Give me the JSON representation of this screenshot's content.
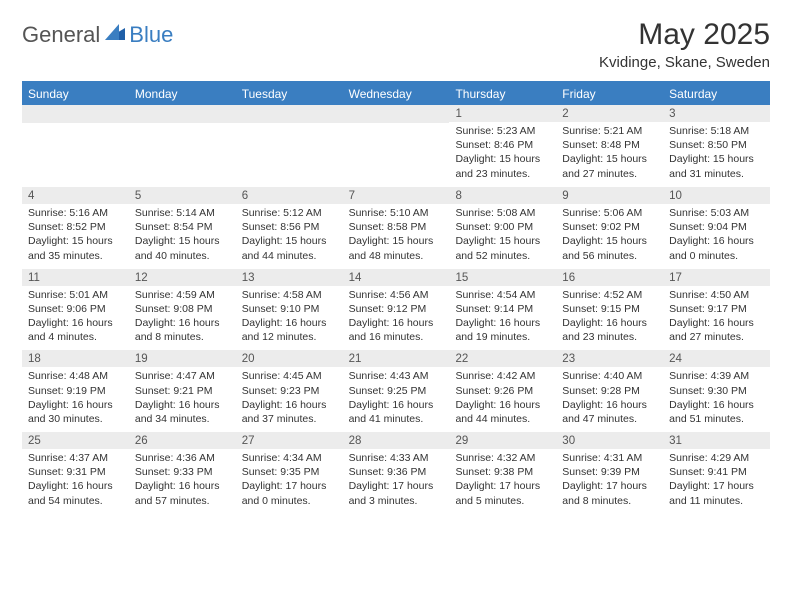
{
  "logo": {
    "general": "General",
    "blue": "Blue"
  },
  "title": "May 2025",
  "location": "Kvidinge, Skane, Sweden",
  "colors": {
    "header_bar": "#3a7ec1",
    "day_bg": "#ececec",
    "page_bg": "#ffffff",
    "text": "#333333",
    "logo_gray": "#555555",
    "logo_blue": "#3a7ec1"
  },
  "day_names": [
    "Sunday",
    "Monday",
    "Tuesday",
    "Wednesday",
    "Thursday",
    "Friday",
    "Saturday"
  ],
  "weeks": [
    [
      {
        "n": "",
        "sunrise": "",
        "sunset": "",
        "daylight": ""
      },
      {
        "n": "",
        "sunrise": "",
        "sunset": "",
        "daylight": ""
      },
      {
        "n": "",
        "sunrise": "",
        "sunset": "",
        "daylight": ""
      },
      {
        "n": "",
        "sunrise": "",
        "sunset": "",
        "daylight": ""
      },
      {
        "n": "1",
        "sunrise": "Sunrise: 5:23 AM",
        "sunset": "Sunset: 8:46 PM",
        "daylight": "Daylight: 15 hours and 23 minutes."
      },
      {
        "n": "2",
        "sunrise": "Sunrise: 5:21 AM",
        "sunset": "Sunset: 8:48 PM",
        "daylight": "Daylight: 15 hours and 27 minutes."
      },
      {
        "n": "3",
        "sunrise": "Sunrise: 5:18 AM",
        "sunset": "Sunset: 8:50 PM",
        "daylight": "Daylight: 15 hours and 31 minutes."
      }
    ],
    [
      {
        "n": "4",
        "sunrise": "Sunrise: 5:16 AM",
        "sunset": "Sunset: 8:52 PM",
        "daylight": "Daylight: 15 hours and 35 minutes."
      },
      {
        "n": "5",
        "sunrise": "Sunrise: 5:14 AM",
        "sunset": "Sunset: 8:54 PM",
        "daylight": "Daylight: 15 hours and 40 minutes."
      },
      {
        "n": "6",
        "sunrise": "Sunrise: 5:12 AM",
        "sunset": "Sunset: 8:56 PM",
        "daylight": "Daylight: 15 hours and 44 minutes."
      },
      {
        "n": "7",
        "sunrise": "Sunrise: 5:10 AM",
        "sunset": "Sunset: 8:58 PM",
        "daylight": "Daylight: 15 hours and 48 minutes."
      },
      {
        "n": "8",
        "sunrise": "Sunrise: 5:08 AM",
        "sunset": "Sunset: 9:00 PM",
        "daylight": "Daylight: 15 hours and 52 minutes."
      },
      {
        "n": "9",
        "sunrise": "Sunrise: 5:06 AM",
        "sunset": "Sunset: 9:02 PM",
        "daylight": "Daylight: 15 hours and 56 minutes."
      },
      {
        "n": "10",
        "sunrise": "Sunrise: 5:03 AM",
        "sunset": "Sunset: 9:04 PM",
        "daylight": "Daylight: 16 hours and 0 minutes."
      }
    ],
    [
      {
        "n": "11",
        "sunrise": "Sunrise: 5:01 AM",
        "sunset": "Sunset: 9:06 PM",
        "daylight": "Daylight: 16 hours and 4 minutes."
      },
      {
        "n": "12",
        "sunrise": "Sunrise: 4:59 AM",
        "sunset": "Sunset: 9:08 PM",
        "daylight": "Daylight: 16 hours and 8 minutes."
      },
      {
        "n": "13",
        "sunrise": "Sunrise: 4:58 AM",
        "sunset": "Sunset: 9:10 PM",
        "daylight": "Daylight: 16 hours and 12 minutes."
      },
      {
        "n": "14",
        "sunrise": "Sunrise: 4:56 AM",
        "sunset": "Sunset: 9:12 PM",
        "daylight": "Daylight: 16 hours and 16 minutes."
      },
      {
        "n": "15",
        "sunrise": "Sunrise: 4:54 AM",
        "sunset": "Sunset: 9:14 PM",
        "daylight": "Daylight: 16 hours and 19 minutes."
      },
      {
        "n": "16",
        "sunrise": "Sunrise: 4:52 AM",
        "sunset": "Sunset: 9:15 PM",
        "daylight": "Daylight: 16 hours and 23 minutes."
      },
      {
        "n": "17",
        "sunrise": "Sunrise: 4:50 AM",
        "sunset": "Sunset: 9:17 PM",
        "daylight": "Daylight: 16 hours and 27 minutes."
      }
    ],
    [
      {
        "n": "18",
        "sunrise": "Sunrise: 4:48 AM",
        "sunset": "Sunset: 9:19 PM",
        "daylight": "Daylight: 16 hours and 30 minutes."
      },
      {
        "n": "19",
        "sunrise": "Sunrise: 4:47 AM",
        "sunset": "Sunset: 9:21 PM",
        "daylight": "Daylight: 16 hours and 34 minutes."
      },
      {
        "n": "20",
        "sunrise": "Sunrise: 4:45 AM",
        "sunset": "Sunset: 9:23 PM",
        "daylight": "Daylight: 16 hours and 37 minutes."
      },
      {
        "n": "21",
        "sunrise": "Sunrise: 4:43 AM",
        "sunset": "Sunset: 9:25 PM",
        "daylight": "Daylight: 16 hours and 41 minutes."
      },
      {
        "n": "22",
        "sunrise": "Sunrise: 4:42 AM",
        "sunset": "Sunset: 9:26 PM",
        "daylight": "Daylight: 16 hours and 44 minutes."
      },
      {
        "n": "23",
        "sunrise": "Sunrise: 4:40 AM",
        "sunset": "Sunset: 9:28 PM",
        "daylight": "Daylight: 16 hours and 47 minutes."
      },
      {
        "n": "24",
        "sunrise": "Sunrise: 4:39 AM",
        "sunset": "Sunset: 9:30 PM",
        "daylight": "Daylight: 16 hours and 51 minutes."
      }
    ],
    [
      {
        "n": "25",
        "sunrise": "Sunrise: 4:37 AM",
        "sunset": "Sunset: 9:31 PM",
        "daylight": "Daylight: 16 hours and 54 minutes."
      },
      {
        "n": "26",
        "sunrise": "Sunrise: 4:36 AM",
        "sunset": "Sunset: 9:33 PM",
        "daylight": "Daylight: 16 hours and 57 minutes."
      },
      {
        "n": "27",
        "sunrise": "Sunrise: 4:34 AM",
        "sunset": "Sunset: 9:35 PM",
        "daylight": "Daylight: 17 hours and 0 minutes."
      },
      {
        "n": "28",
        "sunrise": "Sunrise: 4:33 AM",
        "sunset": "Sunset: 9:36 PM",
        "daylight": "Daylight: 17 hours and 3 minutes."
      },
      {
        "n": "29",
        "sunrise": "Sunrise: 4:32 AM",
        "sunset": "Sunset: 9:38 PM",
        "daylight": "Daylight: 17 hours and 5 minutes."
      },
      {
        "n": "30",
        "sunrise": "Sunrise: 4:31 AM",
        "sunset": "Sunset: 9:39 PM",
        "daylight": "Daylight: 17 hours and 8 minutes."
      },
      {
        "n": "31",
        "sunrise": "Sunrise: 4:29 AM",
        "sunset": "Sunset: 9:41 PM",
        "daylight": "Daylight: 17 hours and 11 minutes."
      }
    ]
  ]
}
